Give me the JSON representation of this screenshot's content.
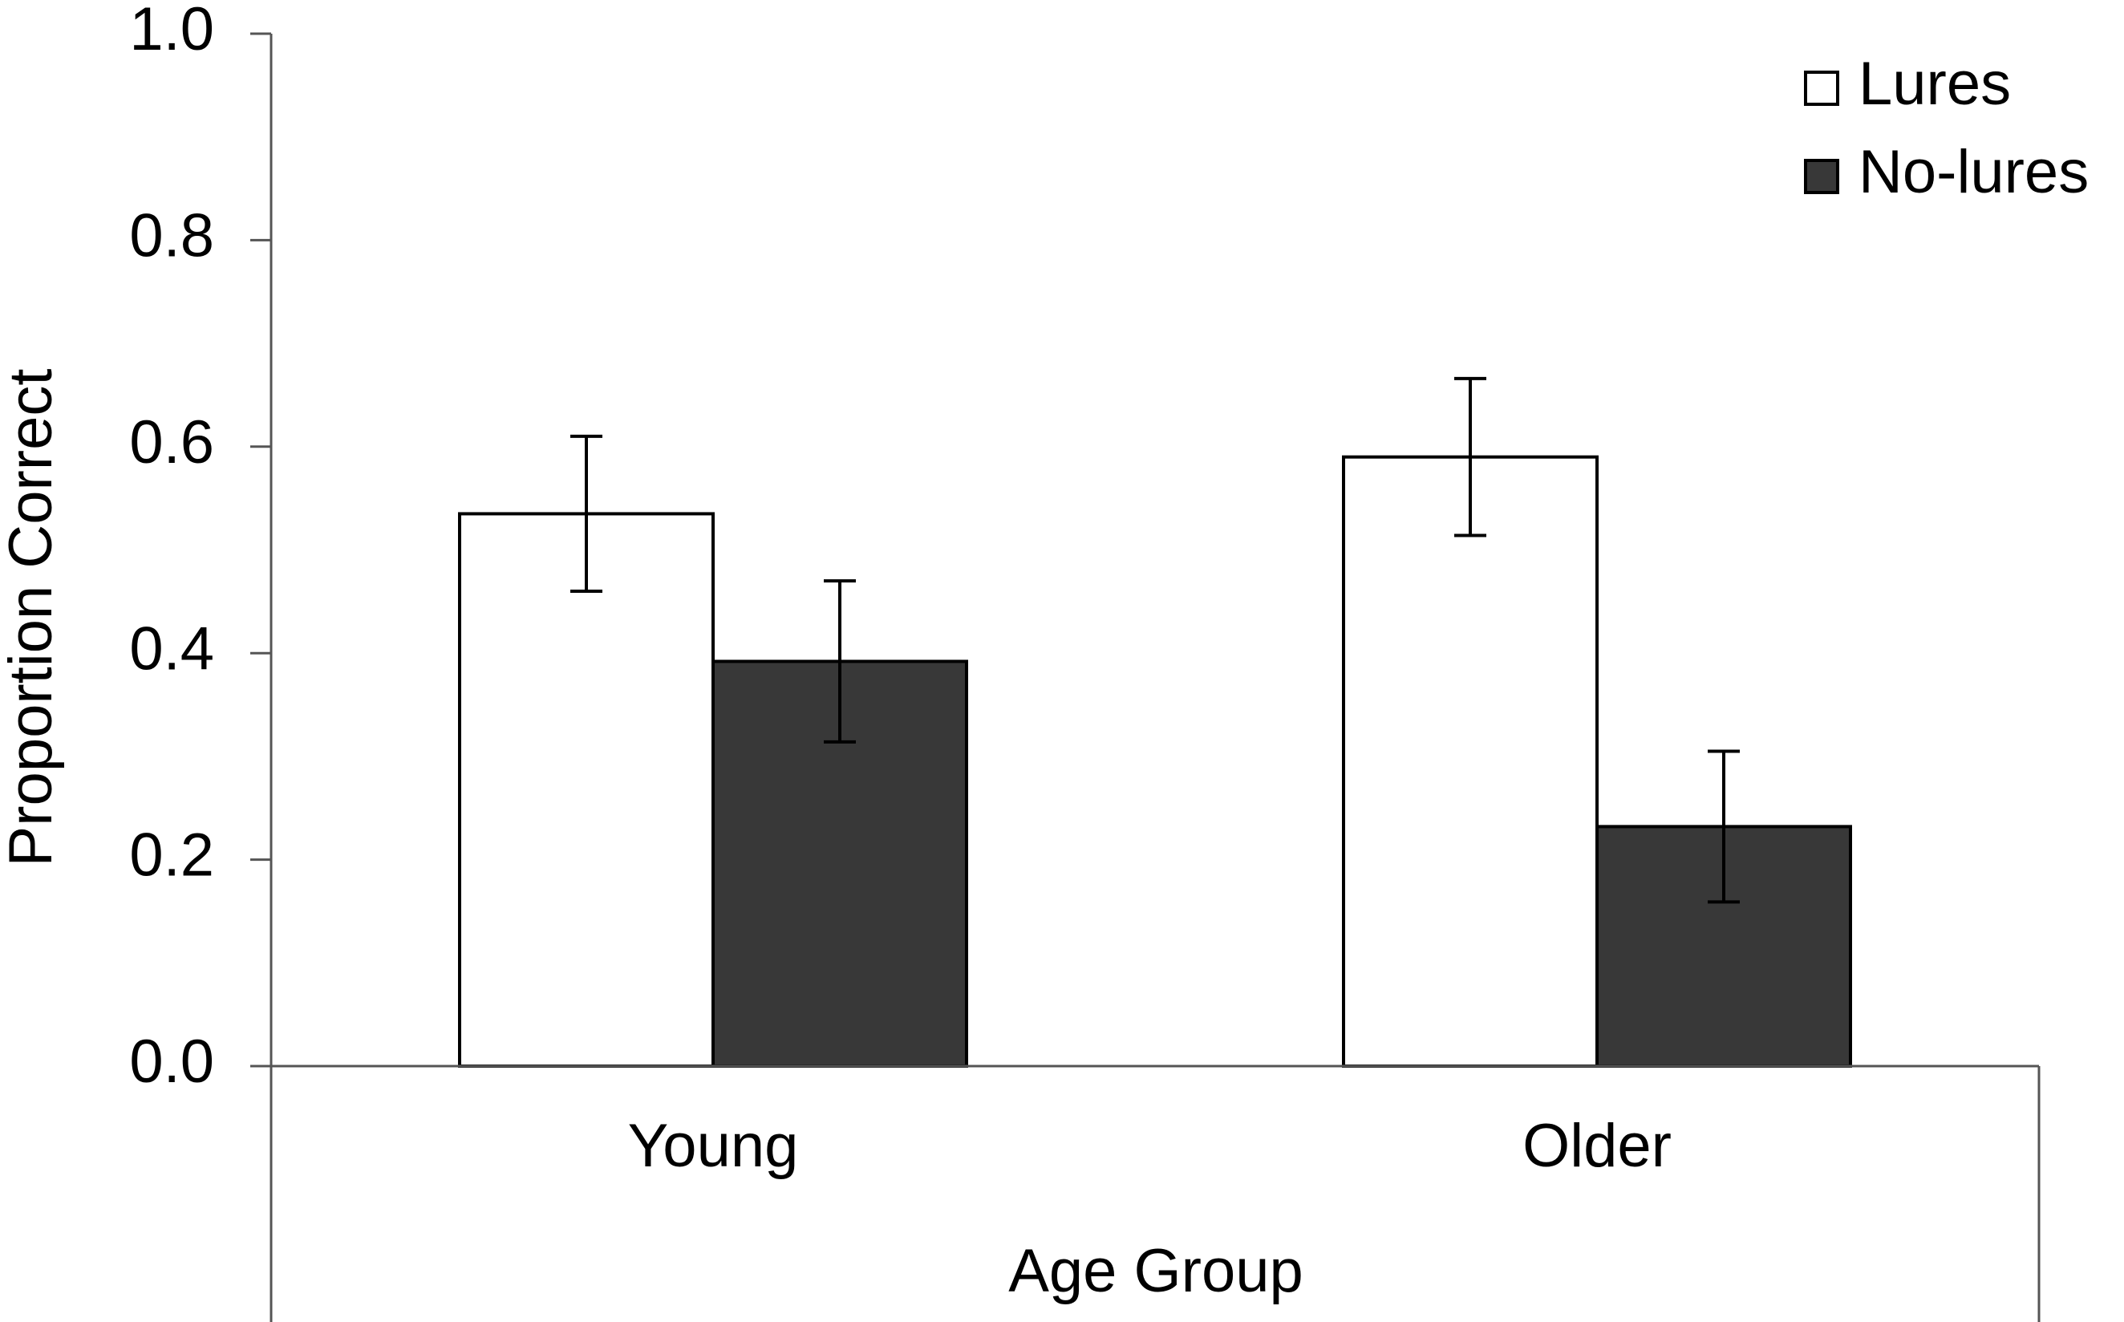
{
  "chart_data": {
    "type": "bar",
    "x_label": "Age Group",
    "y_label": "Proportion Correct",
    "categories": [
      "Young",
      "Older"
    ],
    "series": [
      {
        "name": "Lures",
        "color": "#ffffff",
        "values": [
          0.535,
          0.59
        ],
        "errors": [
          0.075,
          0.076
        ]
      },
      {
        "name": "No-lures",
        "color": "#383838",
        "values": [
          0.392,
          0.232
        ],
        "errors": [
          0.078,
          0.073
        ]
      }
    ],
    "ylim": [
      0,
      1
    ],
    "yticks": [
      {
        "value": 0,
        "label": "0.0"
      },
      0.2,
      0.4,
      0.6,
      0.8,
      {
        "value": 1,
        "label": "1.0"
      }
    ],
    "legend": "top-right",
    "grid": false
  }
}
